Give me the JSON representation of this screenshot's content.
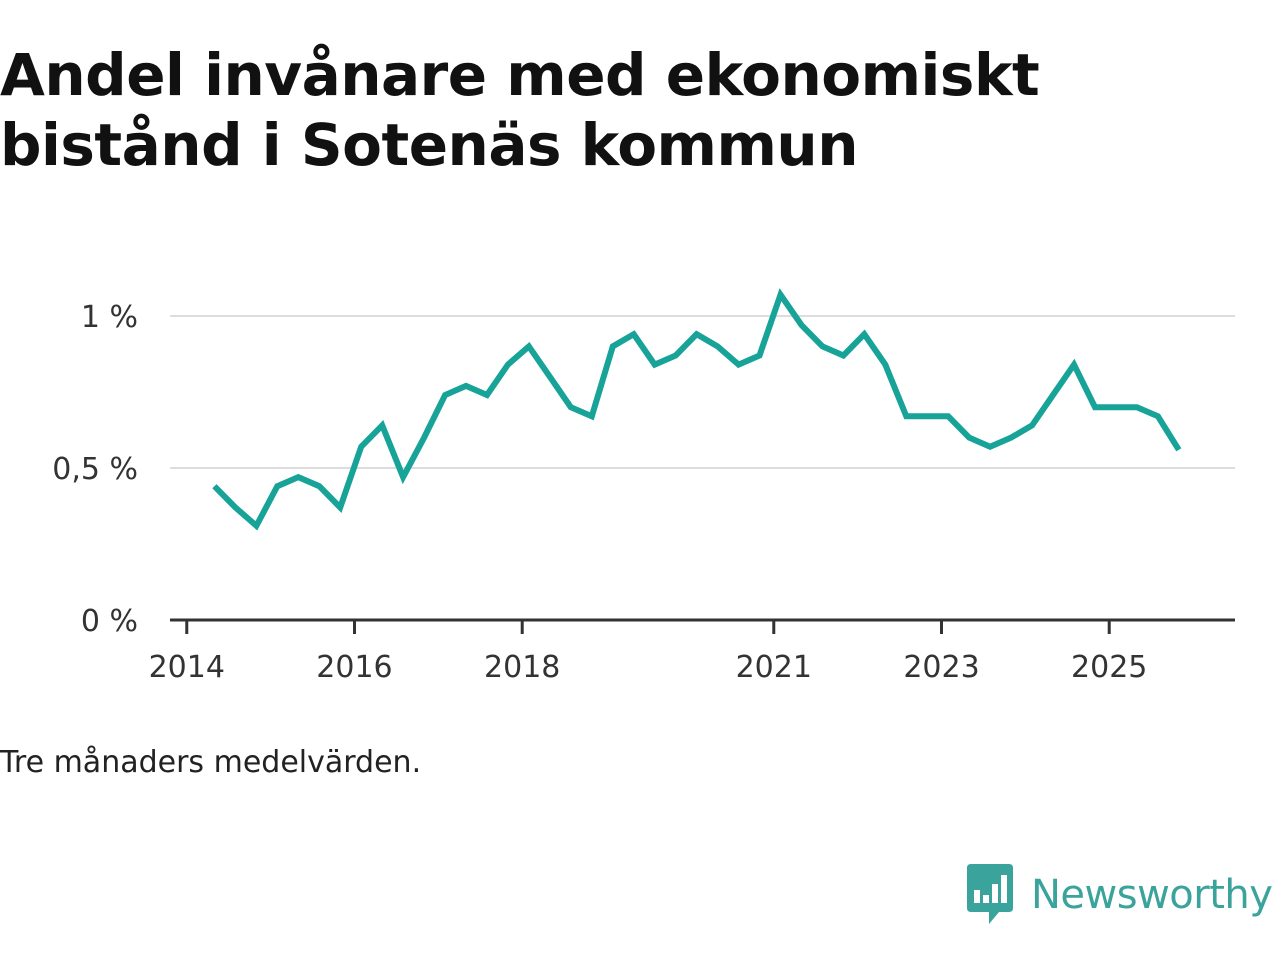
{
  "title": "Andel invånare med ekonomiskt bistånd i Sotenäs kommun",
  "footnote": "Tre månaders medelvärden.",
  "brand": {
    "name": "Newsworthy",
    "logo_icon": "bar-chart-speech-bubble-icon",
    "color": "#3aa39b"
  },
  "colors": {
    "line": "#17a398",
    "grid": "#dddddd",
    "axis": "#333333"
  },
  "chart_data": {
    "type": "line",
    "title": "Andel invånare med ekonomiskt bistånd i Sotenäs kommun",
    "xlabel": "",
    "ylabel": "",
    "xlim": [
      2013.8,
      2026.5
    ],
    "ylim": [
      0,
      1
    ],
    "x_ticks": [
      2014,
      2016,
      2018,
      2021,
      2023,
      2025
    ],
    "x_tick_labels": [
      "2014",
      "2016",
      "2018",
      "2021",
      "2023",
      "2025"
    ],
    "y_ticks": [
      0,
      0.5,
      1
    ],
    "y_tick_labels": [
      "0 %",
      "0,5 %",
      "1 %"
    ],
    "grid": "horizontal",
    "series": [
      {
        "name": "Andel invånare med ekonomiskt bistånd",
        "x": [
          2014.33,
          2014.58,
          2014.83,
          2015.08,
          2015.33,
          2015.58,
          2015.83,
          2016.08,
          2016.33,
          2016.58,
          2016.83,
          2017.08,
          2017.33,
          2017.58,
          2017.83,
          2018.08,
          2018.33,
          2018.58,
          2018.83,
          2019.08,
          2019.33,
          2019.58,
          2019.83,
          2020.08,
          2020.33,
          2020.58,
          2020.83,
          2021.08,
          2021.33,
          2021.58,
          2021.83,
          2022.08,
          2022.33,
          2022.58,
          2022.83,
          2023.08,
          2023.33,
          2023.58,
          2023.83,
          2024.08,
          2024.33,
          2024.58,
          2024.83,
          2025.08,
          2025.33,
          2025.58,
          2025.83
        ],
        "values": [
          0.44,
          0.37,
          0.31,
          0.44,
          0.47,
          0.44,
          0.37,
          0.57,
          0.64,
          0.47,
          0.6,
          0.74,
          0.77,
          0.74,
          0.84,
          0.9,
          0.8,
          0.7,
          0.67,
          0.9,
          0.94,
          0.84,
          0.87,
          0.94,
          0.9,
          0.84,
          0.87,
          1.07,
          0.97,
          0.9,
          0.87,
          0.94,
          0.84,
          0.67,
          0.67,
          0.67,
          0.6,
          0.57,
          0.6,
          0.64,
          0.74,
          0.84,
          0.7,
          0.7,
          0.7,
          0.67,
          0.56
        ]
      }
    ]
  }
}
